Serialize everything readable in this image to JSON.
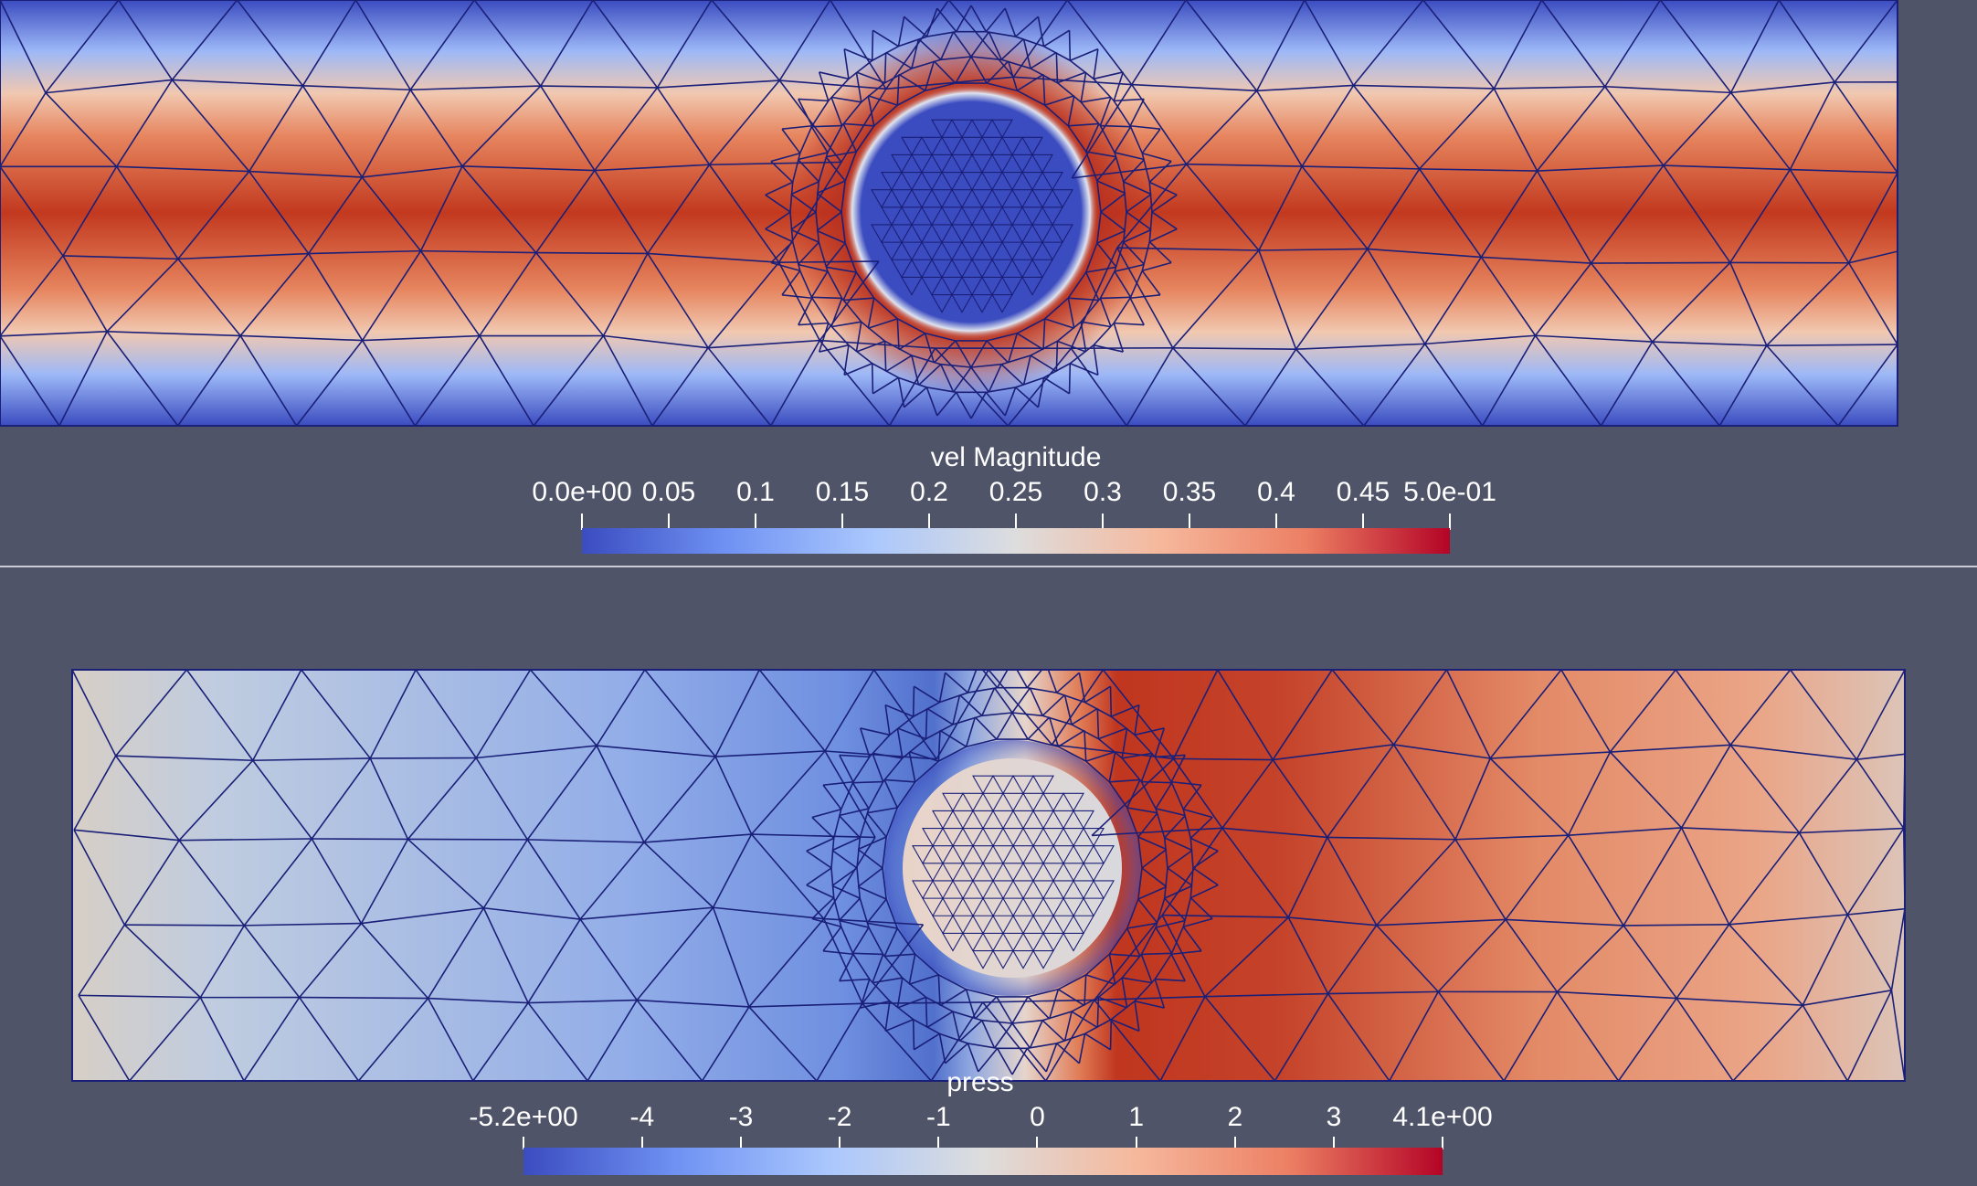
{
  "views": {
    "top": {
      "field": "vel Magnitude",
      "colorbar": {
        "title": "vel Magnitude",
        "ticks": [
          {
            "value": 0.0,
            "label": "0.0e+00"
          },
          {
            "value": 0.05,
            "label": "0.05"
          },
          {
            "value": 0.1,
            "label": "0.1"
          },
          {
            "value": 0.15,
            "label": "0.15"
          },
          {
            "value": 0.2,
            "label": "0.2"
          },
          {
            "value": 0.25,
            "label": "0.25"
          },
          {
            "value": 0.3,
            "label": "0.3"
          },
          {
            "value": 0.35,
            "label": "0.35"
          },
          {
            "value": 0.4,
            "label": "0.4"
          },
          {
            "value": 0.45,
            "label": "0.45"
          },
          {
            "value": 0.5,
            "label": "5.0e-01"
          }
        ],
        "range": [
          0.0,
          0.5
        ]
      }
    },
    "bottom": {
      "field": "press",
      "colorbar": {
        "title": "press",
        "ticks": [
          {
            "value": -5.2,
            "label": "-5.2e+00"
          },
          {
            "value": -4,
            "label": "-4"
          },
          {
            "value": -3,
            "label": "-3"
          },
          {
            "value": -2,
            "label": "-2"
          },
          {
            "value": -1,
            "label": "-1"
          },
          {
            "value": 0,
            "label": "0"
          },
          {
            "value": 1,
            "label": "1"
          },
          {
            "value": 2,
            "label": "2"
          },
          {
            "value": 3,
            "label": "3"
          },
          {
            "value": 4.1,
            "label": "4.1e+00"
          }
        ],
        "range": [
          -5.2,
          4.1
        ]
      }
    }
  },
  "colors": {
    "background": "#4f5468",
    "mesh_edges": "#1a1f78",
    "colormap": [
      "#3b4cc0",
      "#6f92f3",
      "#aac7fd",
      "#dddddd",
      "#f6b89c",
      "#ec7f63",
      "#b40426"
    ]
  }
}
